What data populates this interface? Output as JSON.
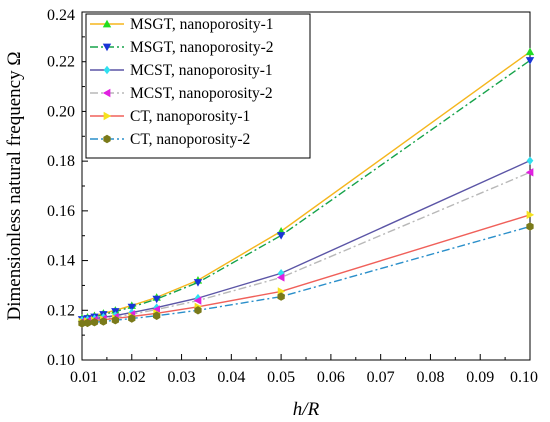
{
  "chart_data": {
    "type": "line",
    "xlabel": "h/R",
    "ylabel": "Dimensionless natural frequency Ω",
    "xlim": [
      0.01,
      0.1
    ],
    "ylim": [
      0.1,
      0.24
    ],
    "xticks": [
      0.01,
      0.02,
      0.03,
      0.04,
      0.05,
      0.06,
      0.07,
      0.08,
      0.09,
      0.1
    ],
    "yticks": [
      0.1,
      0.12,
      0.14,
      0.16,
      0.18,
      0.2,
      0.22,
      0.24
    ],
    "xtick_labels": [
      "0.01",
      "0.02",
      "0.03",
      "0.04",
      "0.05",
      "0.06",
      "0.07",
      "0.08",
      "0.09",
      "0.10"
    ],
    "ytick_labels": [
      "0.10",
      "0.12",
      "0.14",
      "0.16",
      "0.18",
      "0.20",
      "0.22",
      "0.24"
    ],
    "grid": false,
    "legend_position": "top-left",
    "x": [
      0.01,
      0.0111,
      0.0125,
      0.0143,
      0.0167,
      0.02,
      0.025,
      0.0333,
      0.05,
      0.1
    ],
    "series": [
      {
        "name": "MSGT, nanoporosity-1",
        "color": "#f5b61d",
        "dash": "solid",
        "marker": "triangle-up",
        "marker_color": "#22dd22",
        "values": [
          0.1168,
          0.1172,
          0.1178,
          0.1188,
          0.12,
          0.1219,
          0.1252,
          0.1321,
          0.1518,
          0.224
        ]
      },
      {
        "name": "MSGT, nanoporosity-2",
        "color": "#16a34a",
        "dash": "dashdot",
        "marker": "triangle-down",
        "marker_color": "#1a35d6",
        "values": [
          0.1163,
          0.1167,
          0.1173,
          0.1183,
          0.1195,
          0.1213,
          0.1245,
          0.1312,
          0.1501,
          0.2205
        ]
      },
      {
        "name": "MCST, nanoporosity-1",
        "color": "#5b55a6",
        "dash": "solid",
        "marker": "diamond",
        "marker_color": "#30e0f0",
        "values": [
          0.116,
          0.1162,
          0.1166,
          0.1172,
          0.1179,
          0.1191,
          0.1211,
          0.1249,
          0.1349,
          0.1802
        ]
      },
      {
        "name": "MCST, nanoporosity-2",
        "color": "#b8b8b8",
        "dash": "dashdot",
        "marker": "triangle-left",
        "marker_color": "#e020e0",
        "values": [
          0.1155,
          0.1157,
          0.1161,
          0.1166,
          0.1173,
          0.1184,
          0.1203,
          0.1239,
          0.1332,
          0.1755
        ]
      },
      {
        "name": "CT, nanoporosity-1",
        "color": "#f0605a",
        "dash": "solid",
        "marker": "triangle-right",
        "marker_color": "#f5e21d",
        "values": [
          0.1153,
          0.1155,
          0.1158,
          0.1162,
          0.1167,
          0.1175,
          0.1188,
          0.1214,
          0.1276,
          0.1584
        ]
      },
      {
        "name": "CT, nanoporosity-2",
        "color": "#2a8fca",
        "dash": "dashdot",
        "marker": "hexagon",
        "marker_color": "#7a7a1a",
        "values": [
          0.1147,
          0.1149,
          0.1152,
          0.1155,
          0.116,
          0.1167,
          0.1178,
          0.12,
          0.1255,
          0.1537
        ]
      }
    ]
  }
}
